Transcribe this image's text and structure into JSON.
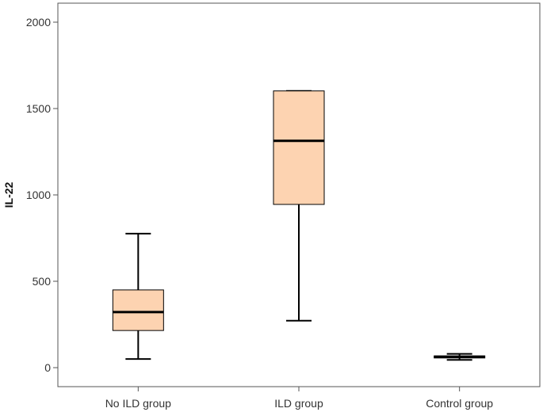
{
  "chart_data": {
    "type": "boxplot",
    "title": "",
    "xlabel": "",
    "ylabel": "IL-22",
    "ylim": [
      -110,
      2110
    ],
    "yticks": [
      0,
      500,
      1000,
      1500,
      2000
    ],
    "ytick_labels": [
      "0",
      "500",
      "1000",
      "1500",
      "2000"
    ],
    "grid": false,
    "categories": [
      "No ILD group",
      "ILD group",
      "Control group"
    ],
    "boxes": [
      {
        "category": "No ILD group",
        "whisker_low": 50,
        "q1": 215,
        "median": 322,
        "q3": 450,
        "whisker_high": 776
      },
      {
        "category": "ILD group",
        "whisker_low": 272,
        "q1": 945,
        "median": 1313,
        "q3": 1602,
        "whisker_high": 1602
      },
      {
        "category": "Control group",
        "whisker_low": 45,
        "q1": 56,
        "median": 63,
        "q3": 68,
        "whisker_high": 80
      }
    ],
    "colors": {
      "box_fill": "#fdd3b1",
      "stroke": "#000000",
      "frame": "#555555"
    }
  }
}
